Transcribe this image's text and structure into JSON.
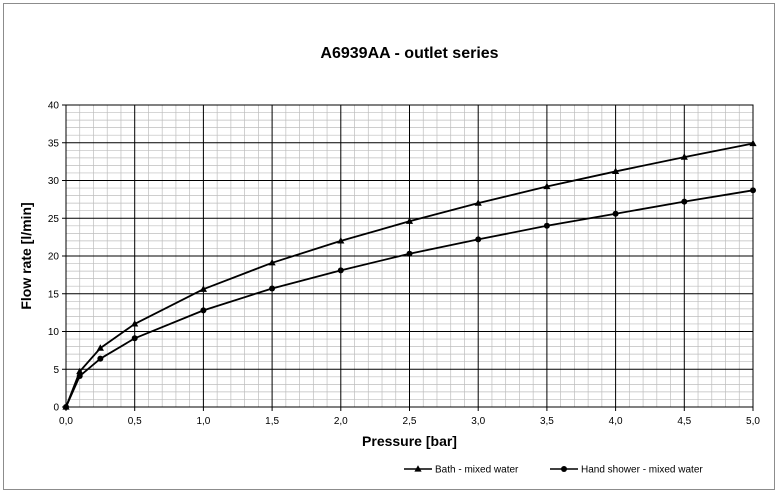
{
  "chart_data": {
    "type": "line",
    "title": "A6939AA - outlet series",
    "xlabel": "Pressure [bar]",
    "ylabel": "Flow rate [l/min]",
    "xlim": [
      0,
      5
    ],
    "ylim": [
      0,
      40
    ],
    "x_ticks": [
      "0,0",
      "0,5",
      "1,0",
      "1,5",
      "2,0",
      "2,5",
      "3,0",
      "3,5",
      "4,0",
      "4,5",
      "5,0"
    ],
    "y_ticks": [
      "0",
      "5",
      "10",
      "15",
      "20",
      "25",
      "30",
      "35",
      "40"
    ],
    "grid": true,
    "legend_position": "bottom-right",
    "series": [
      {
        "name": "Bath - mixed water",
        "marker": "triangle",
        "color": "#000000",
        "x": [
          0,
          0.1,
          0.25,
          0.5,
          1.0,
          1.5,
          2.0,
          2.5,
          3.0,
          3.5,
          4.0,
          4.5,
          5.0
        ],
        "y": [
          0,
          4.7,
          7.8,
          11.0,
          15.6,
          19.1,
          22.0,
          24.6,
          27.0,
          29.2,
          31.2,
          33.1,
          34.9
        ]
      },
      {
        "name": "Hand shower - mixed water",
        "marker": "circle",
        "color": "#000000",
        "x": [
          0,
          0.1,
          0.25,
          0.5,
          1.0,
          1.5,
          2.0,
          2.5,
          3.0,
          3.5,
          4.0,
          4.5,
          5.0
        ],
        "y": [
          0,
          4.1,
          6.4,
          9.1,
          12.8,
          15.7,
          18.1,
          20.3,
          22.2,
          24.0,
          25.6,
          27.2,
          28.7
        ]
      }
    ]
  }
}
